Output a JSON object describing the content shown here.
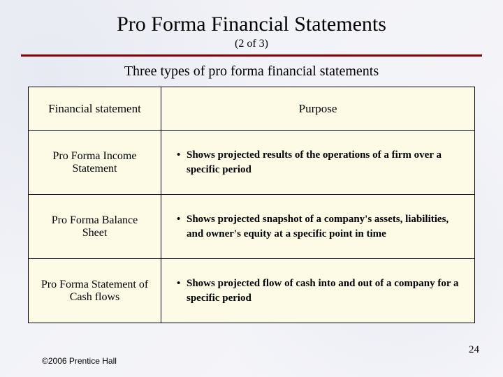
{
  "slide": {
    "title": "Pro Forma Financial Statements",
    "subtitle": "(2 of 3)",
    "section_title": "Three types of pro forma financial statements",
    "page_number": "24",
    "copyright": "©2006 Prentice Hall"
  },
  "table": {
    "header_left": "Financial statement",
    "header_right": "Purpose",
    "rows": [
      {
        "statement_line1": "Pro Forma Income",
        "statement_line2": "Statement",
        "purpose": "Shows projected results of the operations of a firm over a specific period"
      },
      {
        "statement_line1": "Pro Forma Balance",
        "statement_line2": "Sheet",
        "purpose": "Shows projected snapshot of a company's assets, liabilities, and owner's equity at a specific point in time"
      },
      {
        "statement_line1": "Pro Forma Statement of",
        "statement_line2": "Cash flows",
        "purpose": "Shows projected flow of cash into and out of a company for a specific period"
      }
    ]
  },
  "colors": {
    "rule": "#800000",
    "table_bg": "#fdfbe6",
    "border": "#000000",
    "text": "#000000"
  }
}
